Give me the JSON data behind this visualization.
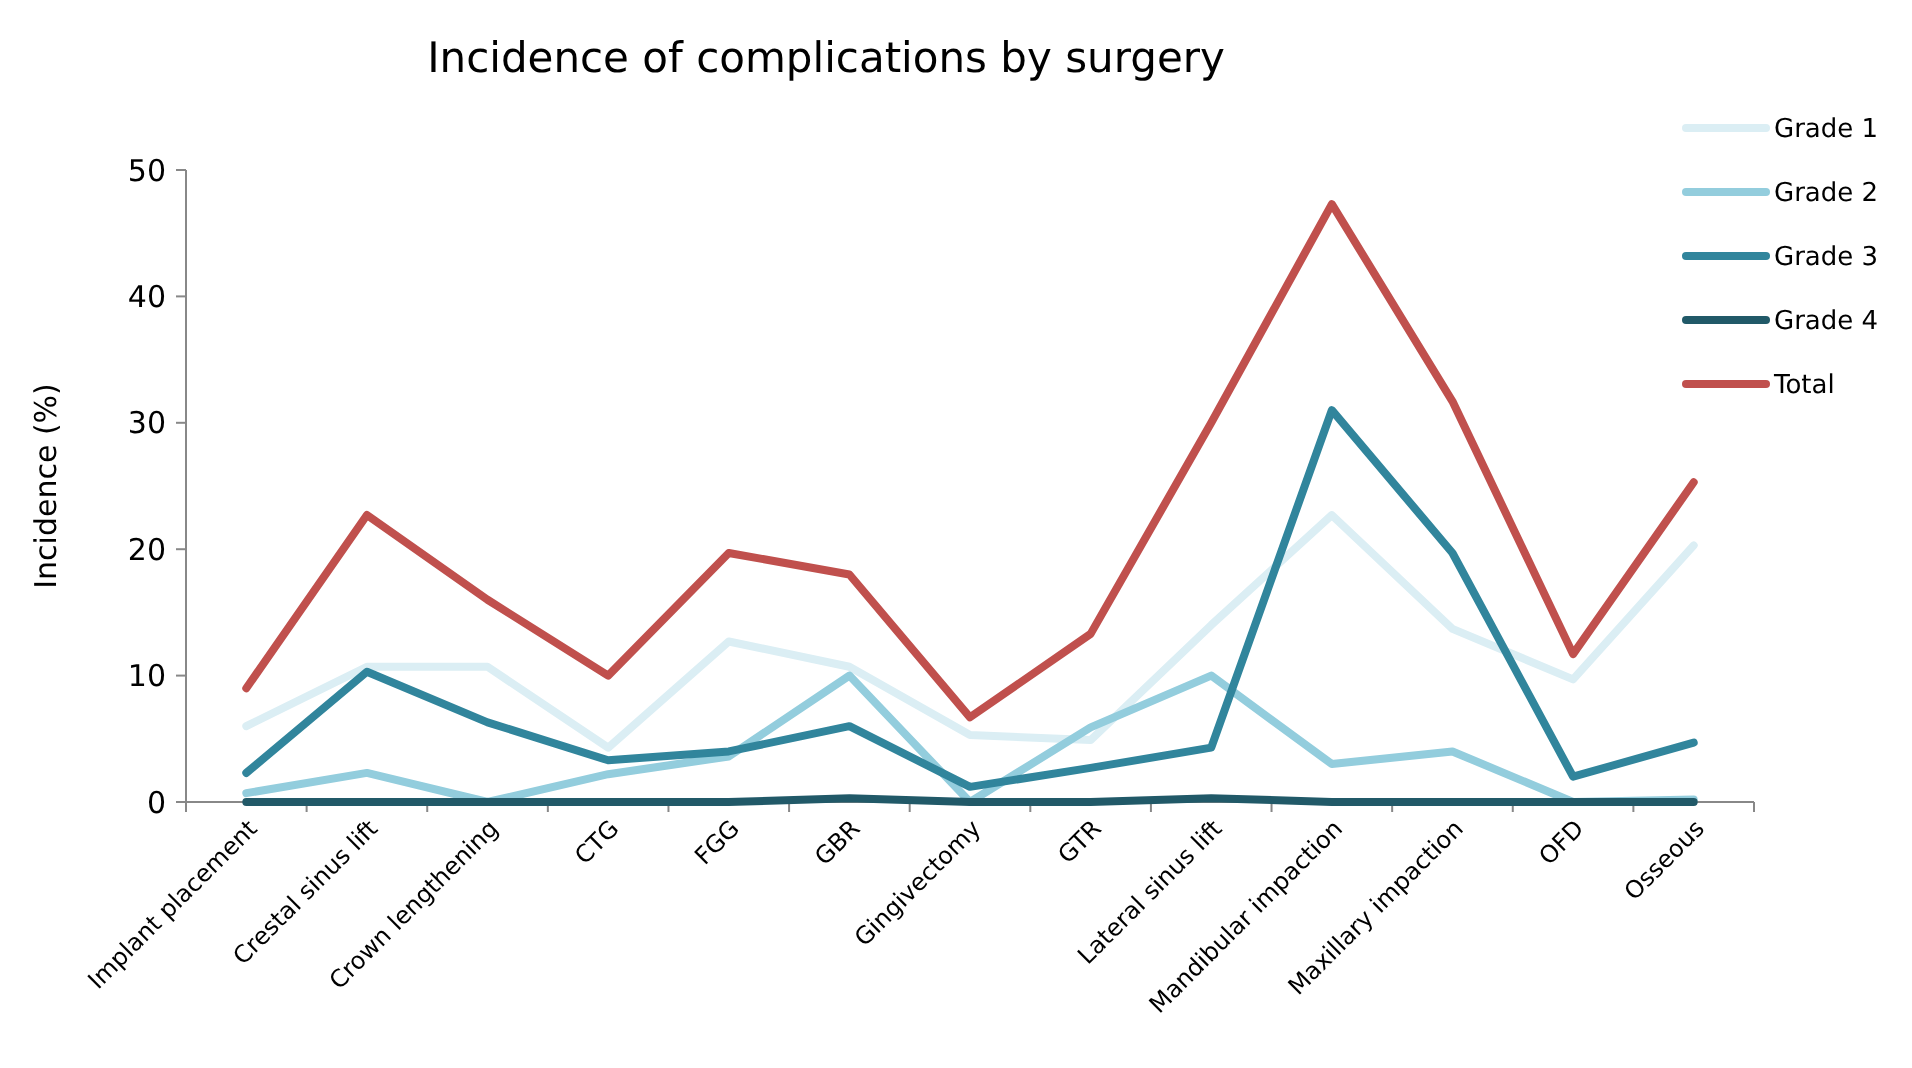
{
  "chart_data": {
    "type": "line",
    "title": "Incidence of complications by surgery",
    "ylabel": "Incidence (%)",
    "categories": [
      "Implant placement",
      "Crestal sinus lift",
      "Crown lengthening",
      "CTG",
      "FGG",
      "GBR",
      "Gingivectomy",
      "GTR",
      "Lateral sinus lift",
      "Mandibular impaction",
      "Maxillary impaction",
      "OFD",
      "Osseous"
    ],
    "series": [
      {
        "name": "Grade 1",
        "color": "#dbeef4",
        "values": [
          6,
          10.7,
          10.7,
          4.3,
          12.7,
          10.7,
          5.3,
          4.9,
          14,
          22.7,
          13.7,
          9.7,
          20.3
        ]
      },
      {
        "name": "Grade 2",
        "color": "#93cddd",
        "values": [
          0.7,
          2.3,
          0,
          2.2,
          3.6,
          10,
          0,
          5.9,
          10,
          3,
          4,
          0,
          0.2
        ]
      },
      {
        "name": "Grade 3",
        "color": "#31859c",
        "values": [
          2.3,
          10.3,
          6.3,
          3.3,
          4,
          6,
          1.2,
          2.7,
          4.3,
          31,
          19.7,
          2,
          4.7
        ]
      },
      {
        "name": "Grade 4",
        "color": "#215968",
        "values": [
          0,
          0,
          0,
          0,
          0,
          0.3,
          0,
          0,
          0.3,
          0,
          0,
          0,
          0
        ]
      },
      {
        "name": "Total",
        "color": "#c0504d",
        "values": [
          9,
          22.7,
          16,
          10,
          19.7,
          18,
          6.7,
          13.3,
          30,
          47.3,
          31.7,
          11.7,
          25.3
        ]
      }
    ],
    "ylim": [
      0,
      50
    ],
    "yticks": [
      0,
      10,
      20,
      30,
      40,
      50
    ],
    "legend": "top right",
    "marker": "none",
    "line_style": "solid",
    "grid": false
  }
}
